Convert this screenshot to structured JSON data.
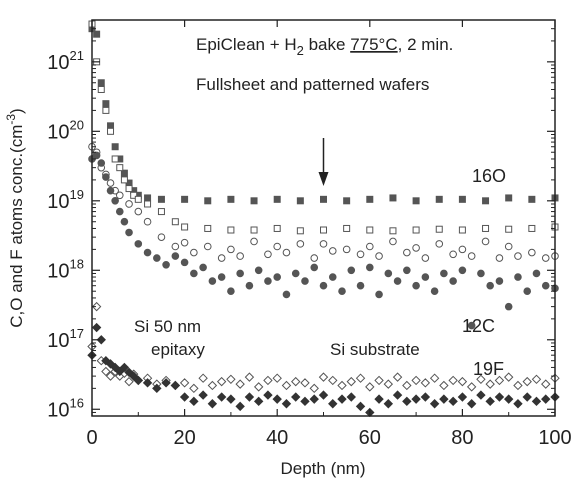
{
  "chart_data": {
    "type": "scatter",
    "title": "",
    "xlabel": "Depth (nm)",
    "ylabel": "C,O and F atoms conc.(cm",
    "ylabel_sup": "-3",
    "ylabel_close": ")",
    "xlim": [
      0,
      100
    ],
    "ylim": [
      8000000000000000.0,
      4e+21
    ],
    "yscale": "log",
    "grid": false,
    "x_ticks": [
      0,
      20,
      40,
      60,
      80,
      100
    ],
    "x_tick_labels": [
      "0",
      "20",
      "40",
      "60",
      "80",
      "100"
    ],
    "y_ticks": [
      1e+16,
      1e+17,
      1e+18,
      1e+19,
      1e+20,
      1e+21
    ],
    "y_tick_labels": [
      {
        "base": "10",
        "exp": "16"
      },
      {
        "base": "10",
        "exp": "17"
      },
      {
        "base": "10",
        "exp": "18"
      },
      {
        "base": "10",
        "exp": "19"
      },
      {
        "base": "10",
        "exp": "20"
      },
      {
        "base": "10",
        "exp": "21"
      }
    ],
    "annotations": {
      "line1_a": "EpiClean + H",
      "line1_sub": "2",
      "line1_b": " bake ",
      "line1_temp": "775°C",
      "line1_c": ", 2 min.",
      "line2": "Fullsheet and patterned wafers",
      "epi_line1": "Si 50 nm",
      "epi_line2": "epitaxy",
      "substrate": "Si substrate",
      "arrow_at_x": 50
    },
    "series": [
      {
        "label": "16O",
        "marker": "square-filled",
        "color": "#555555",
        "x": [
          0,
          1,
          2,
          3,
          4,
          5,
          6,
          7,
          8,
          9,
          10,
          12,
          15,
          20,
          25,
          30,
          35,
          40,
          45,
          50,
          55,
          60,
          65,
          70,
          75,
          80,
          85,
          90,
          95,
          100
        ],
        "y": [
          3e+21,
          2.5e+21,
          5e+20,
          2.5e+20,
          1.2e+20,
          6e+19,
          4e+19,
          2.5e+19,
          1.8e+19,
          1.4e+19,
          1.2e+19,
          1.1e+19,
          1.05e+19,
          1.05e+19,
          1e+19,
          1.05e+19,
          1e+19,
          1.05e+19,
          1e+19,
          1.05e+19,
          1e+19,
          1.05e+19,
          1.1e+19,
          1e+19,
          1.05e+19,
          1.05e+19,
          1e+19,
          1.1e+19,
          1.05e+19,
          1.1e+19
        ]
      },
      {
        "label": "",
        "marker": "square-open",
        "color": "#555555",
        "x": [
          0,
          1,
          2,
          3,
          4,
          5,
          6,
          7,
          8,
          9,
          10,
          12,
          15,
          18,
          20,
          25,
          30,
          35,
          40,
          45,
          50,
          55,
          60,
          65,
          70,
          75,
          80,
          85,
          90,
          95,
          100
        ],
        "y": [
          3.5e+21,
          1e+21,
          4e+20,
          2e+20,
          1e+20,
          4e+19,
          3e+19,
          2e+19,
          1.5e+19,
          1.2e+19,
          1.05e+19,
          9e+18,
          7e+18,
          5e+18,
          4.2e+18,
          4e+18,
          3.8e+18,
          3.8e+18,
          4e+18,
          3.7e+18,
          3.8e+18,
          4e+18,
          3.8e+18,
          3.7e+18,
          3.8e+18,
          3.9e+18,
          3.8e+18,
          4e+18,
          3.9e+18,
          4e+18,
          4.2e+18
        ]
      },
      {
        "label": "",
        "marker": "circle-open",
        "color": "#555555",
        "x": [
          0,
          1,
          2,
          3,
          4,
          5,
          6,
          8,
          10,
          12,
          15,
          18,
          20,
          22,
          25,
          28,
          30,
          32,
          35,
          38,
          40,
          42,
          45,
          48,
          50,
          52,
          55,
          58,
          60,
          62,
          65,
          68,
          70,
          72,
          75,
          78,
          80,
          82,
          85,
          88,
          90,
          92,
          95,
          98,
          100
        ],
        "y": [
          6e+19,
          5e+19,
          3e+19,
          2.4e+19,
          1.8e+19,
          1.4e+19,
          1.2e+19,
          9e+18,
          7e+18,
          5e+18,
          3e+18,
          2.2e+18,
          2.5e+18,
          1.8e+18,
          2.2e+18,
          1.5e+18,
          2e+18,
          1.6e+18,
          2.6e+18,
          1.7e+18,
          2.2e+18,
          1.8e+18,
          2.4e+18,
          1.5e+18,
          2.4e+18,
          1.9e+18,
          2e+18,
          1.7e+18,
          2.2e+18,
          1.6e+18,
          2.6e+18,
          1.8e+18,
          2.1e+18,
          1.5e+18,
          2.4e+18,
          1.7e+18,
          2e+18,
          1.6e+18,
          2.6e+18,
          1.5e+18,
          2.2e+18,
          1.6e+18,
          1.8e+18,
          1.5e+18,
          1.6e+18
        ]
      },
      {
        "label": "12C",
        "marker": "circle-filled",
        "color": "#555555",
        "x": [
          0,
          1,
          2,
          3,
          4,
          5,
          6,
          7,
          8,
          10,
          12,
          14,
          16,
          18,
          20,
          22,
          24,
          26,
          28,
          30,
          32,
          34,
          36,
          38,
          40,
          42,
          44,
          46,
          48,
          50,
          52,
          54,
          56,
          58,
          60,
          62,
          64,
          66,
          68,
          70,
          72,
          74,
          76,
          78,
          80,
          82,
          84,
          86,
          88,
          90,
          92,
          94,
          96,
          98,
          100
        ],
        "y": [
          4e+19,
          4.5e+19,
          3.5e+19,
          2.2e+19,
          1.4e+19,
          1e+19,
          7e+18,
          5e+18,
          3.5e+18,
          2.4e+18,
          1.8e+18,
          1.5e+18,
          1.2e+18,
          1.6e+18,
          1.3e+18,
          9e+17,
          1.1e+18,
          7e+17,
          8e+17,
          5e+17,
          9e+17,
          6e+17,
          1e+18,
          7e+17,
          8e+17,
          4.5e+17,
          9e+17,
          7e+17,
          1.1e+18,
          6e+17,
          8e+17,
          5e+17,
          1e+18,
          6e+17,
          1.1e+18,
          4.5e+17,
          9e+17,
          7e+17,
          1e+18,
          6e+17,
          8e+17,
          5e+17,
          9e+17,
          7e+17,
          1e+18,
          1.6e+17,
          9e+17,
          6e+17,
          7e+17,
          3e+17,
          8e+17,
          5e+17,
          9e+17,
          6e+17,
          5.5e+17
        ]
      },
      {
        "label": "19F",
        "marker": "diamond-open",
        "color": "#555555",
        "x": [
          0,
          1,
          2,
          3,
          4,
          5,
          6,
          7,
          8,
          9,
          10,
          12,
          14,
          16,
          18,
          20,
          22,
          24,
          26,
          28,
          30,
          32,
          34,
          36,
          38,
          40,
          42,
          44,
          46,
          48,
          50,
          52,
          54,
          56,
          58,
          60,
          62,
          64,
          66,
          68,
          70,
          72,
          74,
          76,
          78,
          80,
          82,
          84,
          86,
          88,
          90,
          92,
          94,
          96,
          98,
          100
        ],
        "y": [
          8e+16,
          3e+17,
          5e+16,
          3.5e+16,
          3e+16,
          3.5e+16,
          3e+16,
          3.3e+16,
          2.5e+16,
          3.2e+16,
          2.6e+16,
          2.8e+16,
          2.3e+16,
          2.6e+16,
          2.2e+16,
          2.4e+16,
          2e+16,
          2.8e+16,
          2.2e+16,
          2.5e+16,
          2.7e+16,
          2.3e+16,
          2.9e+16,
          2.1e+16,
          2.6e+16,
          2.8e+16,
          2.2e+16,
          2.5e+16,
          2.4e+16,
          2e+16,
          2.9e+16,
          2.6e+16,
          2.2e+16,
          2.5e+16,
          2.8e+16,
          2.1e+16,
          2.6e+16,
          2.3e+16,
          2.9e+16,
          2.2e+16,
          2.6e+16,
          2.4e+16,
          2.8e+16,
          2.2e+16,
          2.6e+16,
          2.5e+16,
          2.1e+16,
          2.7e+16,
          2.3e+16,
          2.6e+16,
          2.9e+16,
          2.2e+16,
          2.5e+16,
          2.7e+16,
          2.3e+16,
          2.8e+16
        ]
      },
      {
        "label": "",
        "marker": "diamond-filled",
        "color": "#333333",
        "x": [
          0,
          1,
          2,
          3,
          4,
          5,
          6,
          7,
          8,
          9,
          10,
          12,
          14,
          16,
          18,
          20,
          22,
          24,
          26,
          28,
          30,
          32,
          34,
          36,
          38,
          40,
          42,
          44,
          46,
          48,
          50,
          52,
          54,
          56,
          58,
          60,
          62,
          64,
          66,
          68,
          70,
          72,
          74,
          76,
          78,
          80,
          82,
          84,
          86,
          88,
          90,
          92,
          94,
          96,
          98,
          100
        ],
        "y": [
          6e+16,
          1.5e+17,
          1e+17,
          5e+16,
          4.5e+16,
          4e+16,
          3.5e+16,
          4e+16,
          3.4e+16,
          3e+16,
          2.6e+16,
          2.4e+16,
          2e+16,
          2.4e+16,
          2.2e+16,
          1.5e+16,
          1.3e+16,
          1.6e+16,
          1.2e+16,
          1.5e+16,
          1.4e+16,
          1.1e+16,
          1.5e+16,
          1.3e+16,
          1.6e+16,
          1.4e+16,
          1.2e+16,
          1.5e+16,
          1.3e+16,
          1.4e+16,
          1.6e+16,
          1.2e+16,
          1.4e+16,
          1.5e+16,
          1.1e+16,
          9000000000000000.0,
          1.4e+16,
          1.2e+16,
          1.6e+16,
          1.3e+16,
          1.4e+16,
          1.5e+16,
          1.2e+16,
          1.4e+16,
          1.3e+16,
          1.5e+16,
          1.2e+16,
          1.6e+16,
          1.3e+16,
          1.5e+16,
          1.4e+16,
          1.2e+16,
          1.5e+16,
          1.3e+16,
          1.4e+16,
          1.5e+16
        ]
      }
    ]
  }
}
